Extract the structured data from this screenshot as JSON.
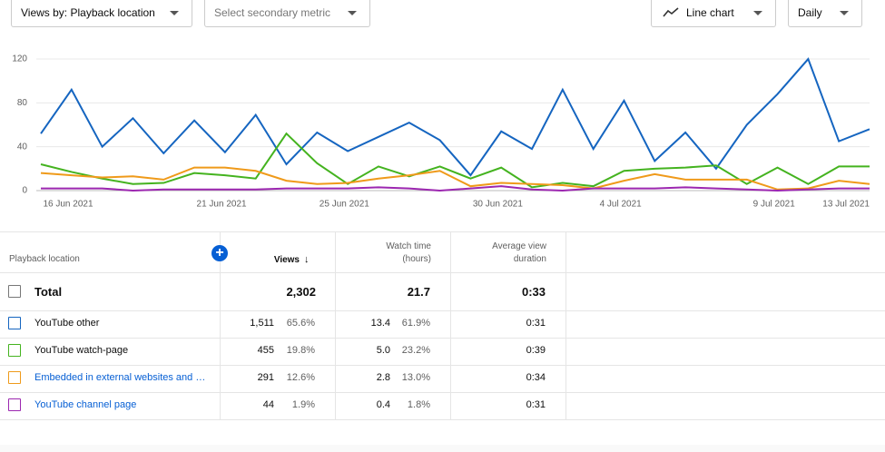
{
  "controls": {
    "metric": "Views by: Playback location",
    "secondary": "Select secondary metric",
    "chart_type": "Line chart",
    "interval": "Daily"
  },
  "chart_data": {
    "type": "line",
    "x": [
      "16 Jun 2021",
      null,
      null,
      null,
      null,
      "21 Jun 2021",
      null,
      null,
      null,
      "25 Jun 2021",
      null,
      null,
      null,
      null,
      "30 Jun 2021",
      null,
      null,
      null,
      "4 Jul 2021",
      null,
      null,
      null,
      null,
      "9 Jul 2021",
      null,
      null,
      null,
      "13 Jul 2021"
    ],
    "ylim": [
      0,
      120
    ],
    "yticks": [
      0,
      40,
      80,
      120
    ],
    "grid": true,
    "series": [
      {
        "color": "#1565c0",
        "values": [
          52,
          92,
          40,
          66,
          34,
          64,
          35,
          69,
          24,
          53,
          36,
          49,
          62,
          46,
          14,
          54,
          38,
          92,
          38,
          82,
          27,
          53,
          20,
          60,
          88,
          120,
          45,
          56
        ]
      },
      {
        "color": "#44b31f",
        "values": [
          24,
          17,
          11,
          6,
          7,
          16,
          14,
          11,
          52,
          25,
          6,
          22,
          13,
          22,
          11,
          21,
          3,
          7,
          4,
          18,
          20,
          21,
          23,
          6,
          21,
          6,
          22,
          22
        ]
      },
      {
        "color": "#ef9a1a",
        "values": [
          16,
          14,
          12,
          13,
          10,
          21,
          21,
          18,
          9,
          6,
          7,
          11,
          14,
          18,
          4,
          7,
          6,
          5,
          2,
          9,
          15,
          10,
          10,
          10,
          1,
          2,
          9,
          6
        ]
      },
      {
        "color": "#9c27b0",
        "values": [
          2,
          2,
          2,
          0,
          1,
          1,
          1,
          1,
          2,
          2,
          2,
          3,
          2,
          0,
          2,
          4,
          1,
          0,
          2,
          2,
          2,
          3,
          2,
          1,
          0,
          1,
          2,
          2
        ]
      }
    ]
  },
  "table": {
    "headers": [
      "Playback location",
      "Views",
      "Watch time\n(hours)",
      "Average view\nduration"
    ],
    "total": {
      "label": "Total",
      "views": "2,302",
      "watch": "21.7",
      "avg": "0:33"
    },
    "rows": [
      {
        "name": "YouTube other",
        "views": "1,511",
        "views_pct": "65.6%",
        "watch": "13.4",
        "watch_pct": "61.9%",
        "avg": "0:31"
      },
      {
        "name": "YouTube watch-page",
        "views": "455",
        "views_pct": "19.8%",
        "watch": "5.0",
        "watch_pct": "23.2%",
        "avg": "0:39"
      },
      {
        "name": "Embedded in external websites and …",
        "views": "291",
        "views_pct": "12.6%",
        "watch": "2.8",
        "watch_pct": "13.0%",
        "avg": "0:34"
      },
      {
        "name": "YouTube channel page",
        "views": "44",
        "views_pct": "1.9%",
        "watch": "0.4",
        "watch_pct": "1.8%",
        "avg": "0:31"
      }
    ]
  }
}
